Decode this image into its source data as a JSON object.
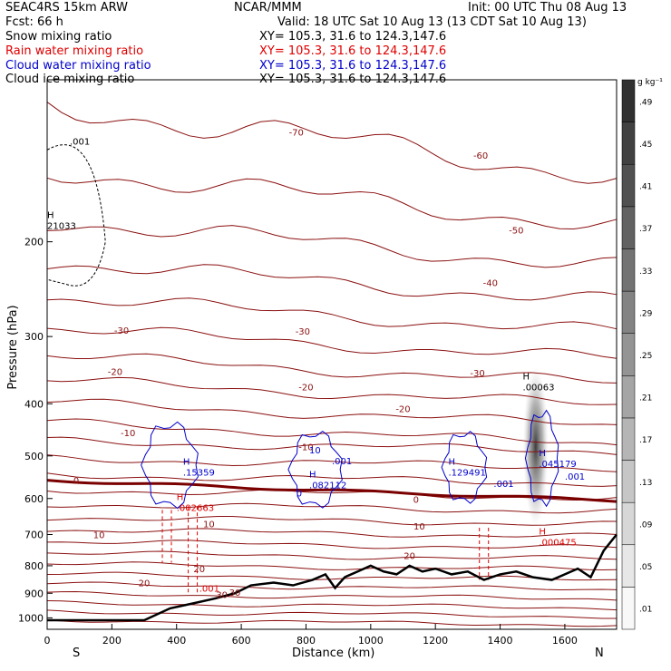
{
  "header": {
    "model": "SEAC4RS 15km ARW",
    "org": "NCAR/MMM",
    "init": "Init: 00 UTC Thu 08 Aug 13",
    "fcst": "Fcst:   66 h",
    "valid": "Valid: 18 UTC Sat 10 Aug 13 (13 CDT Sat 10 Aug 13)"
  },
  "fields": [
    {
      "name": "Snow mixing ratio",
      "xy": "XY=  105.3,  31.6 to 124.3,147.6",
      "color": "#000000"
    },
    {
      "name": "Rain water mixing ratio",
      "xy": "XY=  105.3,  31.6 to 124.3,147.6",
      "color": "#e00000"
    },
    {
      "name": "Cloud water mixing ratio",
      "xy": "XY=  105.3,  31.6 to 124.3,147.6",
      "color": "#0000cc"
    },
    {
      "name": "Cloud ice mixing ratio",
      "xy": "XY=  105.3,  31.6 to 124.3,147.6",
      "color": "#000000"
    }
  ],
  "colorbar": {
    "unit": "g kg⁻¹",
    "labels": [
      ".01",
      ".05",
      ".09",
      ".13",
      ".17",
      ".21",
      ".25",
      ".29",
      ".33",
      ".37",
      ".41",
      ".45",
      ".49"
    ]
  },
  "chart_data": {
    "type": "cross-section",
    "xlabel": "Distance (km)",
    "ylabel": "Pressure (hPa)",
    "xlim": [
      0,
      1760
    ],
    "ylim": [
      1050,
      100
    ],
    "x_ticks": [
      0,
      200,
      400,
      600,
      800,
      1000,
      1200,
      1400,
      1600
    ],
    "y_ticks": [
      200,
      300,
      400,
      500,
      600,
      700,
      800,
      900,
      1000
    ],
    "y_scale": "log",
    "left_end_label": "S",
    "right_end_label": "N",
    "temperature_contour_labels": [
      {
        "text": "-70",
        "x": 770,
        "p": 125
      },
      {
        "text": "-60",
        "x": 1340,
        "p": 138
      },
      {
        "text": "-50",
        "x": 1450,
        "p": 190
      },
      {
        "text": "-40",
        "x": 1370,
        "p": 238
      },
      {
        "text": "-30",
        "x": 230,
        "p": 292
      },
      {
        "text": "-30",
        "x": 790,
        "p": 293
      },
      {
        "text": "-30",
        "x": 1330,
        "p": 350
      },
      {
        "text": "-20",
        "x": 210,
        "p": 348
      },
      {
        "text": "-20",
        "x": 800,
        "p": 372
      },
      {
        "text": "-20",
        "x": 1100,
        "p": 408
      },
      {
        "text": "-10",
        "x": 250,
        "p": 452
      },
      {
        "text": "-10",
        "x": 800,
        "p": 480
      },
      {
        "text": "0",
        "x": 90,
        "p": 555
      },
      {
        "text": "0",
        "x": 1140,
        "p": 602
      },
      {
        "text": "10",
        "x": 160,
        "p": 700
      },
      {
        "text": "10",
        "x": 500,
        "p": 668
      },
      {
        "text": "10",
        "x": 1150,
        "p": 675
      },
      {
        "text": "20",
        "x": 300,
        "p": 860
      },
      {
        "text": "20",
        "x": 470,
        "p": 810
      },
      {
        "text": "20",
        "x": 1120,
        "p": 765
      },
      {
        "text": "30",
        "x": 540,
        "p": 905
      },
      {
        "text": "30",
        "x": 580,
        "p": 895
      }
    ],
    "maxima": [
      {
        "text": ".15359",
        "x": 420,
        "p": 540,
        "color": "#0000cc"
      },
      {
        "text": ".082112",
        "x": 810,
        "p": 570,
        "color": "#0000cc"
      },
      {
        "text": ".129491",
        "x": 1240,
        "p": 540,
        "color": "#0000cc"
      },
      {
        "text": ".045179",
        "x": 1520,
        "p": 520,
        "color": "#0000cc"
      },
      {
        "text": ".002663",
        "x": 400,
        "p": 628,
        "color": "#e00000"
      },
      {
        "text": ".000475",
        "x": 1520,
        "p": 727,
        "color": "#e00000"
      },
      {
        "text": ".00063",
        "x": 1470,
        "p": 375,
        "color": "#000000"
      },
      {
        "text": "21033",
        "x": 0,
        "p": 188,
        "color": "#000000"
      }
    ],
    "contour_value_labels": [
      {
        "text": ".001",
        "x": 880,
        "p": 510,
        "color": "#0000cc"
      },
      {
        "text": ".001",
        "x": 1380,
        "p": 562,
        "color": "#0000cc"
      },
      {
        "text": ".001",
        "x": 1600,
        "p": 545,
        "color": "#0000cc"
      },
      {
        "text": "0",
        "x": 770,
        "p": 585,
        "color": "#0000cc"
      },
      {
        "text": "10",
        "x": 810,
        "p": 487,
        "color": "#0000cc"
      },
      {
        "text": ".001",
        "x": 470,
        "p": 880,
        "color": "#e00000"
      },
      {
        "text": ".001",
        "x": 70,
        "p": 130,
        "color": "#000000"
      }
    ]
  }
}
